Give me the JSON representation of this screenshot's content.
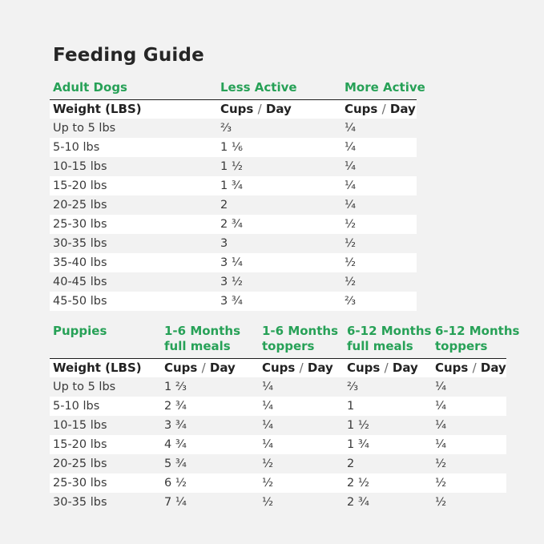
{
  "page": {
    "title": "Feeding Guide"
  },
  "colors": {
    "accent_green": "#27a157",
    "page_background": "#f2f2f2",
    "row_stripe_white": "#ffffff",
    "header_rule_black": "#1d1d1d",
    "text_dark": "#333333"
  },
  "units": {
    "cups": "Cups",
    "slash": "/",
    "day": "Day"
  },
  "adult": {
    "section_label": "Adult Dogs",
    "columns": [
      "Less Active",
      "More Active"
    ],
    "weight_header": "Weight (LBS)",
    "rows": [
      {
        "weight": "Up to 5 lbs",
        "less_active": "⅔",
        "more_active": "¼"
      },
      {
        "weight": "5-10 lbs",
        "less_active": "1 ⅙",
        "more_active": "¼"
      },
      {
        "weight": "10-15 lbs",
        "less_active": "1 ½",
        "more_active": "¼"
      },
      {
        "weight": "15-20 lbs",
        "less_active": "1 ¾",
        "more_active": "¼"
      },
      {
        "weight": "20-25 lbs",
        "less_active": "2",
        "more_active": "¼"
      },
      {
        "weight": "25-30 lbs",
        "less_active": "2 ¾",
        "more_active": "½"
      },
      {
        "weight": "30-35 lbs",
        "less_active": "3",
        "more_active": "½"
      },
      {
        "weight": "35-40 lbs",
        "less_active": "3 ¼",
        "more_active": "½"
      },
      {
        "weight": "40-45 lbs",
        "less_active": "3 ½",
        "more_active": "½"
      },
      {
        "weight": "45-50 lbs",
        "less_active": "3 ¾",
        "more_active": "⅔"
      }
    ]
  },
  "puppies": {
    "section_label": "Puppies",
    "columns": [
      {
        "line1": "1-6 Months",
        "line2": "full meals"
      },
      {
        "line1": "1-6 Months",
        "line2": "toppers"
      },
      {
        "line1": "6-12 Months",
        "line2": "full meals"
      },
      {
        "line1": "6-12 Months",
        "line2": "toppers"
      }
    ],
    "weight_header": "Weight (LBS)",
    "rows": [
      {
        "weight": "Up to 5 lbs",
        "full_1_6": "1 ⅔",
        "toppers_1_6": "¼",
        "full_6_12": "⅔",
        "toppers_6_12": "¼"
      },
      {
        "weight": "5-10 lbs",
        "full_1_6": "2 ¾",
        "toppers_1_6": "¼",
        "full_6_12": "1",
        "toppers_6_12": "¼"
      },
      {
        "weight": "10-15 lbs",
        "full_1_6": "3 ¾",
        "toppers_1_6": "¼",
        "full_6_12": "1 ½",
        "toppers_6_12": "¼"
      },
      {
        "weight": "15-20 lbs",
        "full_1_6": "4 ¾",
        "toppers_1_6": "¼",
        "full_6_12": "1 ¾",
        "toppers_6_12": "¼"
      },
      {
        "weight": "20-25 lbs",
        "full_1_6": "5 ¾",
        "toppers_1_6": "½",
        "full_6_12": "2",
        "toppers_6_12": "½"
      },
      {
        "weight": "25-30 lbs",
        "full_1_6": "6 ½",
        "toppers_1_6": "½",
        "full_6_12": "2 ½",
        "toppers_6_12": "½"
      },
      {
        "weight": "30-35 lbs",
        "full_1_6": "7 ¼",
        "toppers_1_6": "½",
        "full_6_12": "2 ¾",
        "toppers_6_12": "½"
      }
    ]
  }
}
